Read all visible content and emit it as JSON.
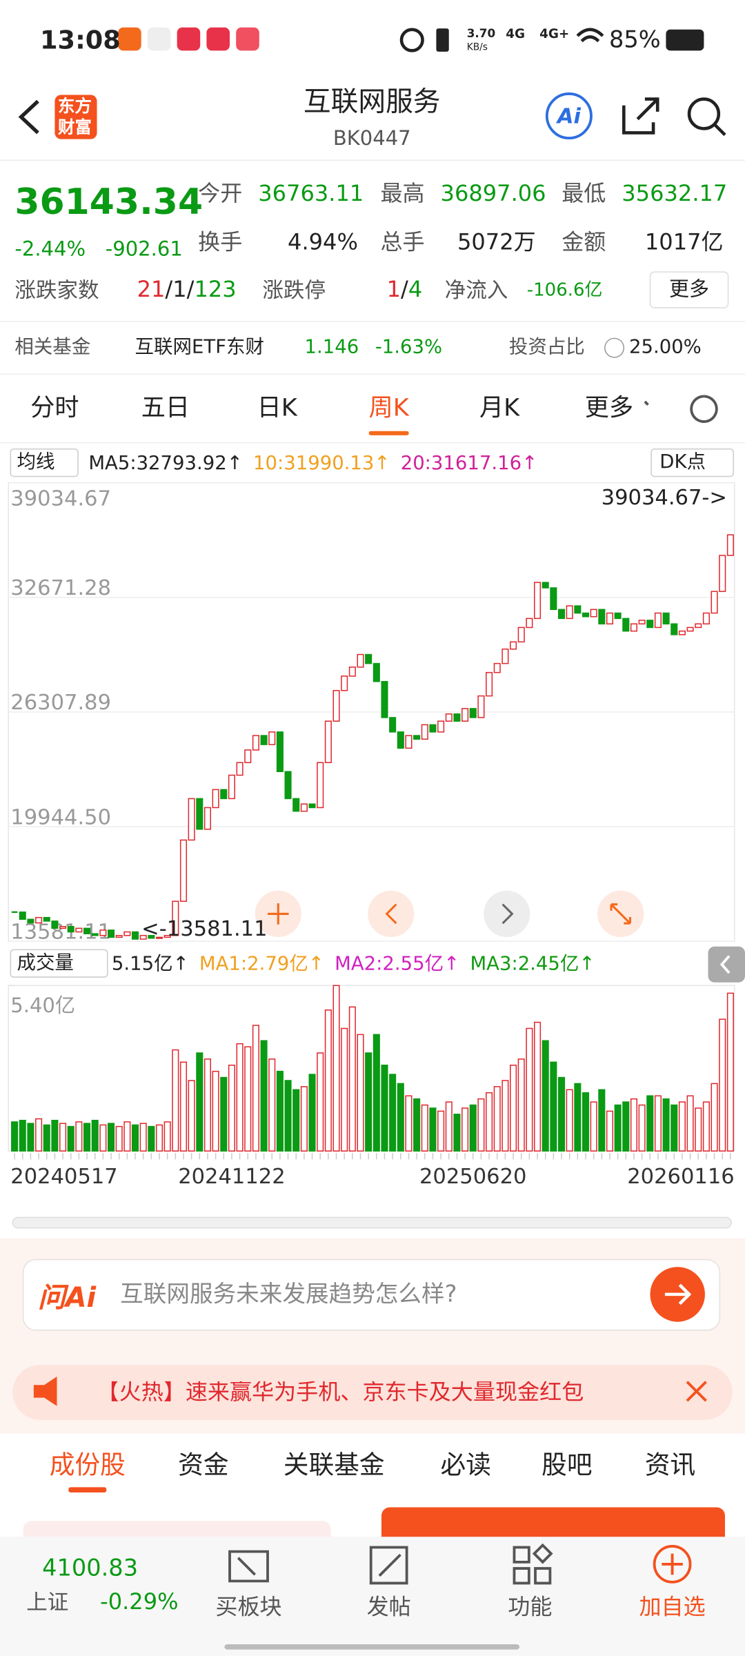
{
  "status_bar": {
    "time": "13:08",
    "speed": "3.70",
    "speed_unit": "KB/s",
    "net1": "4G",
    "net2": "4G+",
    "battery": "85%"
  },
  "header": {
    "title": "互联网服务",
    "code": "BK0447",
    "logo_top": "东方",
    "logo_bottom": "财富",
    "ai": "Ai"
  },
  "quote": {
    "price": "36143.34",
    "change_pct": "-2.44%",
    "change": "-902.61",
    "open_label": "今开",
    "open": "36763.11",
    "high_label": "最高",
    "high": "36897.06",
    "low_label": "最低",
    "low": "35632.17",
    "turnover_label": "换手",
    "turnover": "4.94%",
    "volume_label": "总手",
    "volume": "5072万",
    "amount_label": "金额",
    "amount": "1017亿",
    "breadth_label": "涨跌家数",
    "up": "21",
    "sep": "/",
    "flat": "1",
    "down": "123",
    "limit_label": "涨跌停",
    "limit_up": "1",
    "limit_down": "4",
    "inflow_label": "净流入",
    "inflow": "-106.6亿",
    "more": "更多"
  },
  "fund": {
    "label": "相关基金",
    "name": "互联网ETF东财",
    "price": "1.146",
    "change": "-1.63%",
    "ratio_label": "投资占比",
    "ratio": "25.00%"
  },
  "tabs": [
    "分时",
    "五日",
    "日K",
    "周K",
    "月K",
    "更多"
  ],
  "chart_data": [
    {
      "type": "candlestick",
      "selector": "均线",
      "dk": "DK点",
      "legend": [
        {
          "text": "MA5:32793.92↑",
          "color": "#222222"
        },
        {
          "text": "10:31990.13↑",
          "color": "#f0a020"
        },
        {
          "text": "20:31617.16↑",
          "color": "#d0209a"
        }
      ],
      "ylim": [
        13581.11,
        39034.67
      ],
      "yticks": [
        13581.11,
        {
          "value": 19944.5,
          "label": "19944.50"
        },
        26307.89,
        32671.28,
        39034.67
      ],
      "grid": true,
      "high_label": "39034.67->",
      "low_label": "<-13581.11",
      "up_color": "#e0282e",
      "down_color": "#0a9a14",
      "values": [
        15200,
        14800,
        14600,
        14900,
        14700,
        14300,
        14400,
        14100,
        14300,
        14000,
        13900,
        14200,
        13800,
        13900,
        14100,
        13700,
        13900,
        13750,
        13800,
        13900,
        15800,
        19200,
        21500,
        19800,
        21000,
        22000,
        21500,
        22800,
        23500,
        24200,
        25000,
        24500,
        25200,
        23000,
        21500,
        20800,
        21200,
        21000,
        23500,
        25800,
        27500,
        28300,
        28800,
        29500,
        29000,
        28000,
        26000,
        25200,
        24300,
        25000,
        24800,
        25600,
        25200,
        25800,
        26200,
        25800,
        26500,
        26000,
        27200,
        28500,
        29000,
        29800,
        30200,
        31000,
        31500,
        33500,
        33200,
        32000,
        31500,
        32200,
        31800,
        31600,
        32000,
        31200,
        31800,
        31500,
        30800,
        31200,
        31400,
        31000,
        31800,
        31200,
        30600,
        30800,
        31000,
        31200,
        31800,
        33000,
        35000,
        36143.34
      ]
    },
    {
      "type": "bar",
      "title": "成交量",
      "legend": [
        {
          "text": "5.15亿↑",
          "color": "#222222"
        },
        {
          "text": "MA1:2.79亿↑",
          "color": "#f0a020"
        },
        {
          "text": "MA2:2.55亿↑",
          "color": "#d020c0"
        },
        {
          "text": "MA3:2.45亿↑",
          "color": "#109a10"
        }
      ],
      "ylim": [
        0,
        5.4
      ],
      "yticks": [
        {
          "value": 5.4,
          "label": "5.40亿"
        }
      ],
      "x": [
        "20240517",
        null,
        null,
        null,
        null,
        null,
        null,
        null,
        null,
        null,
        null,
        null,
        null,
        null,
        null,
        null,
        null,
        null,
        null,
        null,
        null,
        null,
        null,
        null,
        null,
        null,
        null,
        "20241122",
        null,
        null,
        null,
        null,
        null,
        null,
        null,
        null,
        null,
        null,
        null,
        null,
        null,
        null,
        null,
        null,
        null,
        null,
        null,
        null,
        null,
        null,
        null,
        null,
        null,
        null,
        null,
        null,
        null,
        "20250620",
        null,
        null,
        null,
        null,
        null,
        null,
        null,
        null,
        null,
        null,
        null,
        null,
        null,
        null,
        null,
        null,
        null,
        null,
        null,
        null,
        null,
        null,
        null,
        null,
        null,
        null,
        null,
        null,
        null,
        "20260116",
        null,
        null
      ],
      "values": [
        0.95,
        1.0,
        0.9,
        1.05,
        0.85,
        1.0,
        0.9,
        0.8,
        0.95,
        0.9,
        1.0,
        0.85,
        0.9,
        0.8,
        0.95,
        0.85,
        0.9,
        0.8,
        0.85,
        0.95,
        3.3,
        2.9,
        2.3,
        3.2,
        3.0,
        2.6,
        2.4,
        2.8,
        3.5,
        3.4,
        4.1,
        3.6,
        3.0,
        2.6,
        2.3,
        2.0,
        2.1,
        2.5,
        3.2,
        4.6,
        5.4,
        4.0,
        4.7,
        3.8,
        3.2,
        3.8,
        2.8,
        2.5,
        2.2,
        1.8,
        1.7,
        1.5,
        1.4,
        1.3,
        1.6,
        1.2,
        1.4,
        1.5,
        1.7,
        1.9,
        2.1,
        2.3,
        2.8,
        3.0,
        4.0,
        4.2,
        3.6,
        2.9,
        2.4,
        2.0,
        2.2,
        1.9,
        1.6,
        2.0,
        1.3,
        1.5,
        1.6,
        1.7,
        1.5,
        1.8,
        1.8,
        1.7,
        1.5,
        1.6,
        1.8,
        1.4,
        1.6,
        2.2,
        4.3,
        5.15
      ]
    }
  ],
  "ask": {
    "logo": "问Ai",
    "prompt": "互联网服务未来发展趋势怎么样?"
  },
  "banner": "【火热】速来赢华为手机、京东卡及大量现金红包",
  "section_tabs": [
    "成份股",
    "资金",
    "关联基金",
    "必读",
    "股吧",
    "资讯"
  ],
  "bottom_nav": {
    "index_price": "4100.83",
    "index_name": "上证",
    "index_change": "-0.29%",
    "items": [
      "买板块",
      "发帖",
      "功能",
      "加自选"
    ]
  }
}
